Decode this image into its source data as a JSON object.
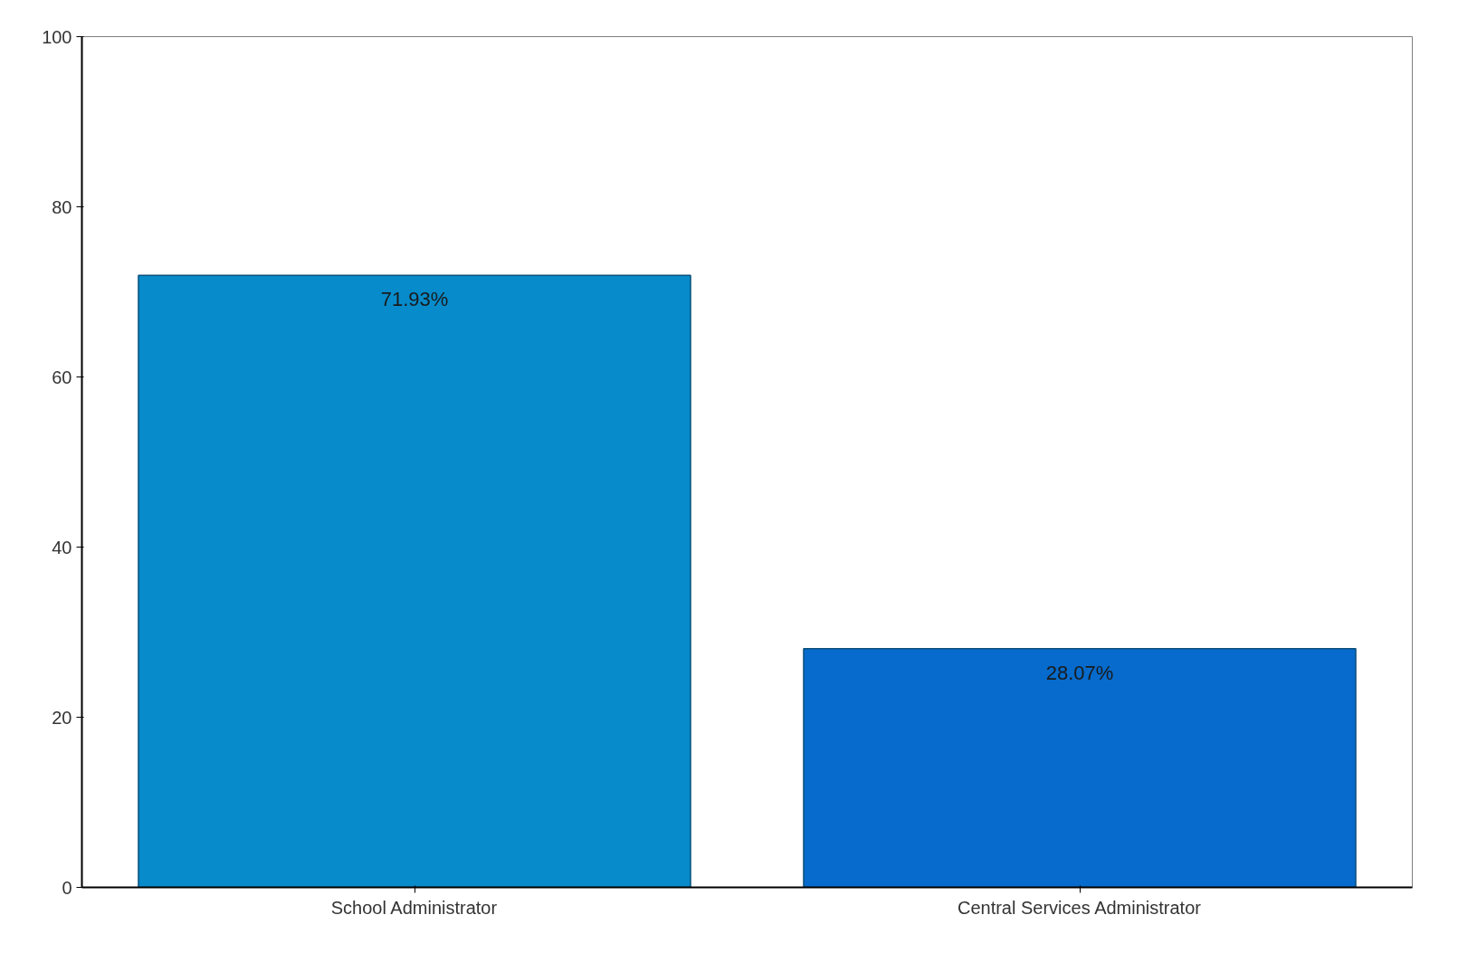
{
  "chart_data": {
    "type": "bar",
    "categories": [
      "School Administrator",
      "Central Services Administrator"
    ],
    "values": [
      71.93,
      28.07
    ],
    "colors": [
      "#078bcb",
      "#066bcc"
    ],
    "value_labels": [
      "71.93%",
      "28.07%"
    ],
    "ylim": [
      0,
      100
    ],
    "yticks": [
      0,
      20,
      40,
      60,
      80,
      100
    ],
    "grid": false
  }
}
